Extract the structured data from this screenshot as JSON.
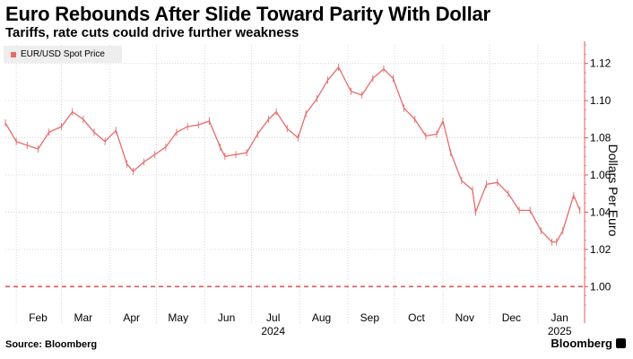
{
  "title": "Euro Rebounds After Slide Toward Parity With Dollar",
  "subtitle": "Tariffs, rate cuts could drive further weakness",
  "source": "Source: Bloomberg",
  "brand": "Bloomberg",
  "colors": {
    "series": "#e86a6a",
    "parity_line": "#e05a5a",
    "grid": "#cccccc"
  },
  "chart_data": {
    "type": "line",
    "legend_position": "top-left",
    "grid": true,
    "series": [
      {
        "name": "EUR/USD Spot Price",
        "x": [
          "2024-01-25",
          "2024-02-01",
          "2024-02-08",
          "2024-02-15",
          "2024-02-22",
          "2024-03-01",
          "2024-03-08",
          "2024-03-15",
          "2024-03-22",
          "2024-03-29",
          "2024-04-05",
          "2024-04-12",
          "2024-04-16",
          "2024-04-23",
          "2024-04-30",
          "2024-05-07",
          "2024-05-14",
          "2024-05-21",
          "2024-05-28",
          "2024-06-04",
          "2024-06-11",
          "2024-06-14",
          "2024-06-21",
          "2024-06-28",
          "2024-07-05",
          "2024-07-12",
          "2024-07-17",
          "2024-07-24",
          "2024-07-31",
          "2024-08-05",
          "2024-08-12",
          "2024-08-19",
          "2024-08-26",
          "2024-09-03",
          "2024-09-10",
          "2024-09-17",
          "2024-09-24",
          "2024-09-30",
          "2024-10-07",
          "2024-10-14",
          "2024-10-21",
          "2024-10-28",
          "2024-11-01",
          "2024-11-06",
          "2024-11-13",
          "2024-11-20",
          "2024-11-22",
          "2024-11-29",
          "2024-12-06",
          "2024-12-13",
          "2024-12-20",
          "2024-12-27",
          "2025-01-03",
          "2025-01-10",
          "2025-01-13",
          "2025-01-17",
          "2025-01-24",
          "2025-01-28"
        ],
        "y": [
          1.088,
          1.078,
          1.076,
          1.074,
          1.083,
          1.086,
          1.094,
          1.09,
          1.083,
          1.078,
          1.084,
          1.066,
          1.062,
          1.067,
          1.071,
          1.075,
          1.083,
          1.086,
          1.087,
          1.089,
          1.075,
          1.07,
          1.071,
          1.072,
          1.082,
          1.09,
          1.094,
          1.085,
          1.08,
          1.093,
          1.101,
          1.111,
          1.118,
          1.105,
          1.103,
          1.112,
          1.117,
          1.112,
          1.096,
          1.09,
          1.081,
          1.082,
          1.089,
          1.072,
          1.057,
          1.052,
          1.04,
          1.055,
          1.056,
          1.05,
          1.041,
          1.041,
          1.03,
          1.024,
          1.024,
          1.03,
          1.049,
          1.041
        ]
      }
    ],
    "reference_line": 1.0,
    "ylabel": "Dollars Per Euro",
    "ylim": [
      0.99,
      1.13
    ],
    "yticks": [
      "1.00",
      "1.02",
      "1.04",
      "1.06",
      "1.08",
      "1.10",
      "1.12"
    ],
    "xticks": [
      {
        "date": "2024-02-15",
        "label": "Feb"
      },
      {
        "date": "2024-03-15",
        "label": "Mar"
      },
      {
        "date": "2024-04-15",
        "label": "Apr"
      },
      {
        "date": "2024-05-15",
        "label": "May"
      },
      {
        "date": "2024-06-15",
        "label": "Jun"
      },
      {
        "date": "2024-07-15",
        "label": "Jul"
      },
      {
        "date": "2024-08-15",
        "label": "Aug"
      },
      {
        "date": "2024-09-15",
        "label": "Sep"
      },
      {
        "date": "2024-10-15",
        "label": "Oct"
      },
      {
        "date": "2024-11-15",
        "label": "Nov"
      },
      {
        "date": "2024-12-15",
        "label": "Dec"
      },
      {
        "date": "2025-01-15",
        "label": "Jan"
      }
    ],
    "year_labels": [
      {
        "date": "2024-07-15",
        "label": "2024"
      },
      {
        "date": "2025-01-15",
        "label": "2025"
      }
    ],
    "xlim": [
      "2024-01-25",
      "2025-01-31"
    ]
  }
}
